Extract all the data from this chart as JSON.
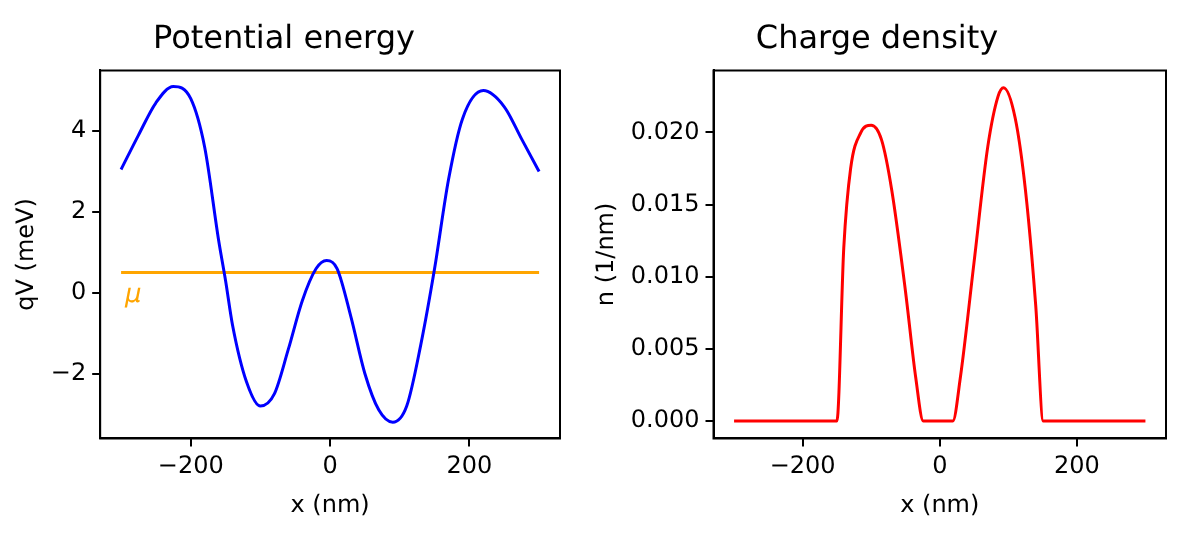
{
  "chart_data": [
    {
      "type": "line",
      "title": "Potential energy",
      "xlabel": "x (nm)",
      "ylabel": "qV (meV)",
      "xlim": [
        -330,
        330
      ],
      "ylim": [
        -3.6,
        5.5
      ],
      "xticks": [
        {
          "value": -200,
          "label": "−200"
        },
        {
          "value": 0,
          "label": "0"
        },
        {
          "value": 200,
          "label": "200"
        }
      ],
      "yticks": [
        {
          "value": -2,
          "label": "−2"
        },
        {
          "value": 0,
          "label": "0"
        },
        {
          "value": 2,
          "label": "2"
        },
        {
          "value": 4,
          "label": "4"
        }
      ],
      "grid": false,
      "legend": false,
      "marker": "none",
      "line_style": "solid",
      "series": [
        {
          "color": "#0000ff",
          "x": [
            -300,
            -275,
            -250,
            -225,
            -200,
            -180,
            -160,
            -150,
            -140,
            -120,
            -100,
            -80,
            -60,
            -40,
            -20,
            -5,
            10,
            30,
            50,
            70,
            90,
            110,
            130,
            150,
            170,
            190,
            220,
            250,
            275,
            300
          ],
          "values": [
            3.05,
            3.9,
            4.7,
            5.1,
            4.8,
            3.6,
            1.3,
            0.3,
            -0.8,
            -2.2,
            -2.8,
            -2.5,
            -1.4,
            -0.2,
            0.6,
            0.8,
            0.6,
            -0.6,
            -2.0,
            -2.9,
            -3.2,
            -2.8,
            -1.3,
            0.6,
            2.8,
            4.3,
            5.0,
            4.6,
            3.8,
            3.0
          ]
        },
        {
          "name": "μ",
          "color": "#ffa500",
          "x": [
            -300,
            300
          ],
          "values": [
            0.5,
            0.5
          ]
        }
      ]
    },
    {
      "type": "line",
      "title": "Charge density",
      "xlabel": "x (nm)",
      "ylabel": "n (1/nm)",
      "xlim": [
        -330,
        330
      ],
      "ylim": [
        -0.0012,
        0.0243
      ],
      "xticks": [
        {
          "value": -200,
          "label": "−200"
        },
        {
          "value": 0,
          "label": "0"
        },
        {
          "value": 200,
          "label": "200"
        }
      ],
      "yticks": [
        {
          "value": 0,
          "label": "0.000"
        },
        {
          "value": 0.005,
          "label": "0.005"
        },
        {
          "value": 0.01,
          "label": "0.010"
        },
        {
          "value": 0.015,
          "label": "0.015"
        },
        {
          "value": 0.02,
          "label": "0.020"
        }
      ],
      "grid": false,
      "legend": false,
      "marker": "none",
      "line_style": "solid",
      "series": [
        {
          "color": "#ff0000",
          "x": [
            -300,
            -150,
            -140,
            -130,
            -115,
            -100,
            -85,
            -70,
            -50,
            -35,
            -24,
            19,
            30,
            50,
            70,
            85,
            93,
            110,
            125,
            140,
            151,
            300
          ],
          "values": [
            0,
            0,
            0.012,
            0.0175,
            0.02,
            0.0205,
            0.0195,
            0.016,
            0.009,
            0.003,
            0,
            0,
            0.003,
            0.011,
            0.019,
            0.0225,
            0.0231,
            0.021,
            0.016,
            0.008,
            0,
            0
          ]
        }
      ]
    }
  ]
}
